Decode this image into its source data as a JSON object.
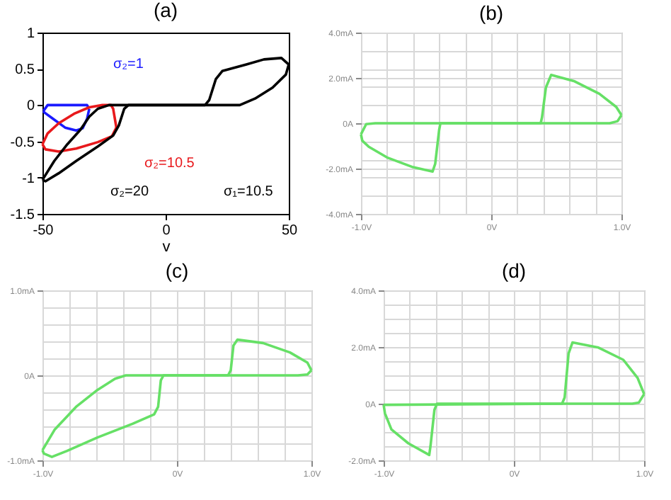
{
  "chart_data": [
    {
      "type": "line",
      "title": "(a)",
      "xlabel": "v",
      "xlim": [
        -50,
        50
      ],
      "ylim": [
        -1.5,
        1
      ],
      "xticks": [
        -50,
        0,
        50
      ],
      "yticks": [
        -1.5,
        -1,
        -0.5,
        0,
        0.5,
        1
      ],
      "legend": false,
      "annotations": [
        "σ₁=10.5"
      ],
      "series": [
        {
          "name": "σ₂=1",
          "color": "#1a1aff",
          "x": [
            -49.6,
            -47.9,
            -31.9,
            -31.0
          ],
          "values": [
            -0.08,
            0,
            0,
            -0.05
          ]
        },
        {
          "color": "#1a1aff",
          "x": [
            -31.0,
            -31.9,
            -33.7,
            -36.3,
            -40.8,
            -46.1,
            -49.3,
            -49.6
          ],
          "values": [
            -0.05,
            -0.19,
            -0.32,
            -0.35,
            -0.31,
            -0.18,
            -0.1,
            -0.08
          ]
        },
        {
          "name": "σ₂=10.5",
          "color": "#e8191c",
          "x": [
            -50,
            -47.9,
            -43.4,
            -37.2,
            -31.0,
            -25.7,
            -22.2,
            -21.3,
            -20.0
          ],
          "values": [
            -0.54,
            -0.39,
            -0.25,
            -0.12,
            -0.03,
            0,
            0,
            -0.05,
            -0.31
          ]
        },
        {
          "color": "#e8191c",
          "x": [
            -20.0,
            -21.8,
            -27.5,
            -36.3,
            -43.4,
            -48.8,
            -50
          ],
          "values": [
            -0.31,
            -0.43,
            -0.51,
            -0.6,
            -0.64,
            -0.61,
            -0.54
          ]
        },
        {
          "name": "σ₂=20",
          "color": "#000000",
          "x": [
            -50,
            -45.2,
            -39.9,
            -34.6,
            -31.0,
            -27.5,
            -23.0,
            16.0,
            17.7,
            20.4,
            23.0,
            32.8,
            39.9,
            47.0,
            50.0
          ],
          "values": [
            -1.03,
            -0.77,
            -0.54,
            -0.34,
            -0.16,
            -0.05,
            0,
            0,
            0.07,
            0.36,
            0.47,
            0.56,
            0.63,
            0.65,
            0.56
          ]
        },
        {
          "color": "#000000",
          "x": [
            50.0,
            48.8,
            43.4,
            36.3,
            30.1,
            -15.1,
            -16.8,
            -19.0,
            -21.3,
            -27.5,
            -36.3,
            -43.4,
            -48.8,
            -50
          ],
          "values": [
            0.56,
            0.42,
            0.24,
            0.09,
            0,
            0,
            -0.05,
            -0.28,
            -0.42,
            -0.57,
            -0.77,
            -0.94,
            -1.05,
            -1.03
          ]
        }
      ]
    },
    {
      "type": "line",
      "title": "(b)",
      "grid": true,
      "xlim": [
        -1,
        1
      ],
      "ylim": [
        -4,
        4
      ],
      "xticks": [
        {
          "value": -1,
          "label": "-1.0V"
        },
        {
          "value": -0.8,
          "label": null
        },
        {
          "value": -0.6,
          "label": null
        },
        {
          "value": -0.4,
          "label": null
        },
        {
          "value": -0.2,
          "label": null
        },
        {
          "value": 0,
          "label": "0V"
        },
        {
          "value": 0.2,
          "label": null
        },
        {
          "value": 0.4,
          "label": null
        },
        {
          "value": 0.6,
          "label": null
        },
        {
          "value": 0.8,
          "label": null
        },
        {
          "value": 1,
          "label": "1.0V"
        }
      ],
      "yticks": [
        {
          "value": -4,
          "label": "-4.0mA"
        },
        {
          "value": -3.2,
          "label": null
        },
        {
          "value": -2.4,
          "label": null
        },
        {
          "value": -2,
          "label": "-2.0mA"
        },
        {
          "value": -1.6,
          "label": null
        },
        {
          "value": -0.8,
          "label": null
        },
        {
          "value": 0,
          "label": "0A"
        },
        {
          "value": 0.8,
          "label": null
        },
        {
          "value": 1.6,
          "label": null
        },
        {
          "value": 2,
          "label": "2.0mA"
        },
        {
          "value": 2.4,
          "label": null
        },
        {
          "value": 3.2,
          "label": null
        },
        {
          "value": 4,
          "label": "4.0mA"
        }
      ],
      "series": [
        {
          "color": "#66e066",
          "x": [
            -1.0,
            -0.96,
            -0.89,
            0.38,
            0.39,
            0.42,
            0.46,
            0.64,
            0.83,
            0.96,
            1.0
          ],
          "values": [
            -0.49,
            -0.04,
            0,
            0,
            0.26,
            1.58,
            2.13,
            1.85,
            1.3,
            0.72,
            0.36
          ]
        },
        {
          "color": "#66e066",
          "x": [
            1.0,
            0.97,
            0.91,
            -0.39,
            -0.4,
            -0.43,
            -0.45,
            -0.6,
            -0.8,
            -0.94,
            -0.99,
            -1.0
          ],
          "values": [
            0.36,
            0.09,
            0,
            0,
            -0.3,
            -1.79,
            -2.13,
            -1.94,
            -1.51,
            -1.04,
            -0.77,
            -0.49
          ]
        }
      ]
    },
    {
      "type": "line",
      "title": "(c)",
      "grid": true,
      "xlim": [
        -1,
        1
      ],
      "ylim": [
        -1,
        1
      ],
      "xticks": [
        {
          "value": -1,
          "label": "-1.0V"
        },
        {
          "value": -0.8,
          "label": null
        },
        {
          "value": -0.6,
          "label": null
        },
        {
          "value": -0.4,
          "label": null
        },
        {
          "value": -0.2,
          "label": null
        },
        {
          "value": 0,
          "label": "0V"
        },
        {
          "value": 0.2,
          "label": null
        },
        {
          "value": 0.4,
          "label": null
        },
        {
          "value": 0.6,
          "label": null
        },
        {
          "value": 0.8,
          "label": null
        },
        {
          "value": 1,
          "label": "1.0V"
        }
      ],
      "yticks": [
        {
          "value": -1,
          "label": "-1.0mA"
        },
        {
          "value": -0.8,
          "label": null
        },
        {
          "value": -0.6,
          "label": null
        },
        {
          "value": -0.4,
          "label": null
        },
        {
          "value": -0.2,
          "label": null
        },
        {
          "value": 0,
          "label": "0A"
        },
        {
          "value": 0.2,
          "label": null
        },
        {
          "value": 0.4,
          "label": null
        },
        {
          "value": 0.6,
          "label": null
        },
        {
          "value": 0.8,
          "label": null
        },
        {
          "value": 1,
          "label": "1.0mA"
        }
      ],
      "series": [
        {
          "color": "#66e066",
          "x": [
            -1.0,
            -0.91,
            -0.75,
            -0.59,
            -0.46,
            -0.38,
            0.38,
            0.4,
            0.42,
            0.45,
            0.64,
            0.84,
            0.97,
            1.0
          ],
          "values": [
            -0.88,
            -0.64,
            -0.37,
            -0.17,
            -0.04,
            0,
            0,
            0.06,
            0.35,
            0.42,
            0.38,
            0.27,
            0.15,
            0.06
          ]
        },
        {
          "color": "#66e066",
          "x": [
            1.0,
            0.97,
            0.9,
            -0.1,
            -0.12,
            -0.14,
            -0.17,
            -0.33,
            -0.59,
            -0.82,
            -0.93,
            -0.99,
            -1.0
          ],
          "values": [
            0.06,
            0.01,
            0,
            0,
            -0.06,
            -0.37,
            -0.46,
            -0.57,
            -0.73,
            -0.89,
            -0.96,
            -0.92,
            -0.88
          ]
        }
      ]
    },
    {
      "type": "line",
      "title": "(d)",
      "grid": true,
      "xlim": [
        -1,
        1
      ],
      "ylim": [
        -2,
        4
      ],
      "xticks": [
        {
          "value": -1,
          "label": "-1.0V"
        },
        {
          "value": -0.8,
          "label": null
        },
        {
          "value": -0.6,
          "label": null
        },
        {
          "value": -0.4,
          "label": null
        },
        {
          "value": -0.2,
          "label": null
        },
        {
          "value": 0,
          "label": "0V"
        },
        {
          "value": 0.2,
          "label": null
        },
        {
          "value": 0.4,
          "label": null
        },
        {
          "value": 0.6,
          "label": null
        },
        {
          "value": 0.8,
          "label": null
        },
        {
          "value": 1,
          "label": "1.0V"
        }
      ],
      "yticks": [
        {
          "value": -2,
          "label": "-2.0mA"
        },
        {
          "value": -1.5,
          "label": null
        },
        {
          "value": -1,
          "label": null
        },
        {
          "value": -0.5,
          "label": null
        },
        {
          "value": 0,
          "label": "0A"
        },
        {
          "value": 0.5,
          "label": null
        },
        {
          "value": 1,
          "label": null
        },
        {
          "value": 1.5,
          "label": null
        },
        {
          "value": 2,
          "label": "2.0mA"
        },
        {
          "value": 2.5,
          "label": null
        },
        {
          "value": 3,
          "label": null
        },
        {
          "value": 3.5,
          "label": null
        },
        {
          "value": 4,
          "label": "4.0mA"
        }
      ],
      "series": [
        {
          "color": "#66e066",
          "x": [
            -1.0,
            0.37,
            0.39,
            0.42,
            0.45,
            0.65,
            0.84,
            0.95,
            1.0
          ],
          "values": [
            -0.04,
            0,
            0.22,
            1.77,
            2.16,
            1.98,
            1.55,
            0.91,
            0.34
          ]
        },
        {
          "color": "#66e066",
          "x": [
            1.0,
            0.96,
            0.91,
            -0.59,
            -0.61,
            -0.64,
            -0.65,
            -0.81,
            -0.94,
            -0.99,
            -1.0
          ],
          "values": [
            0.34,
            0.04,
            0,
            0,
            -0.22,
            -1.49,
            -1.81,
            -1.4,
            -0.91,
            -0.34,
            -0.04
          ]
        }
      ]
    }
  ]
}
